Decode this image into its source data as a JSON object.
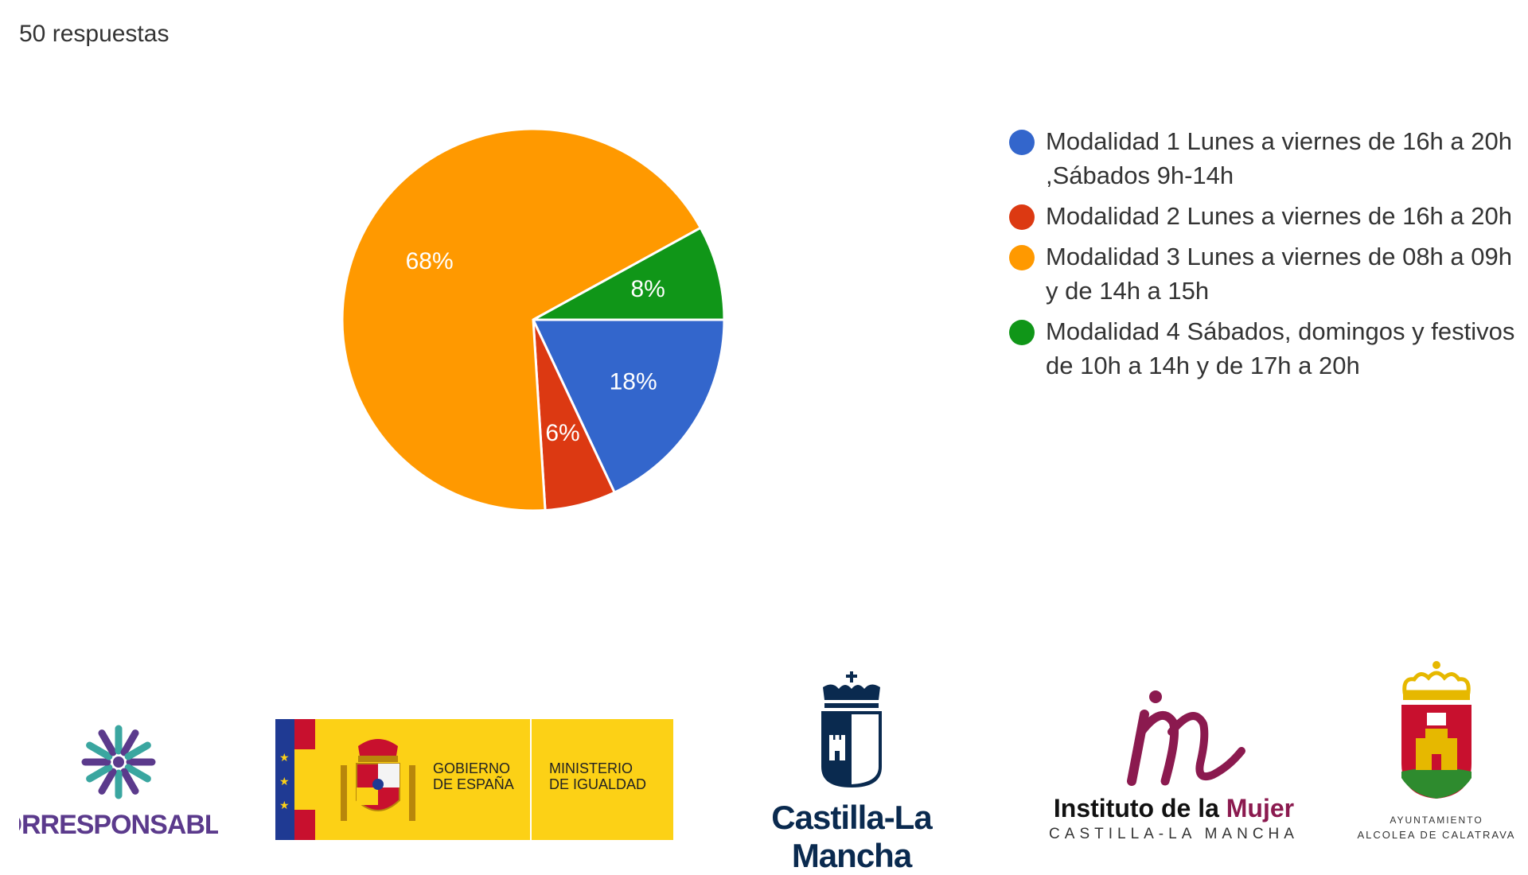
{
  "header": {
    "responses": "50 respuestas"
  },
  "chart_data": {
    "type": "pie",
    "categories": [
      "Modalidad 1 Lunes a viernes de 16h a 20h ,Sábados 9h-14h",
      "Modalidad 2 Lunes a viernes de 16h a 20h",
      "Modalidad 3 Lunes a viernes de 08h a 09h y de 14h a 15h",
      "Modalidad 4 Sábados, domingos y festivos de 10h a 14h y de 17h a 20h"
    ],
    "values": [
      18,
      6,
      68,
      8
    ],
    "data_labels": [
      "18%",
      "6%",
      "68%",
      "8%"
    ],
    "colors": [
      "#3366cc",
      "#dc3912",
      "#ff9900",
      "#109618"
    ],
    "legend_position": "right",
    "slice_order": [
      0,
      1,
      2,
      3
    ],
    "start": "3 o'clock, clockwise"
  },
  "logos": {
    "corresponsables": "CORRESPONSABLES",
    "gobierno_line1": "GOBIERNO",
    "gobierno_line2": "DE ESPAÑA",
    "ministerio_line1": "MINISTERIO",
    "ministerio_line2": "DE IGUALDAD",
    "castilla": "Castilla-La Mancha",
    "instituto_a": "Instituto de la ",
    "instituto_b": "Mujer",
    "instituto_sub": "CASTILLA-LA MANCHA",
    "ayto_line1": "AYUNTAMIENTO",
    "ayto_line2": "ALCOLEA DE CALATRAVA",
    "colors": {
      "purple": "#5b3a8c",
      "teal": "#3aa6a0",
      "yellow": "#fcd116",
      "red": "#c8102e",
      "navy": "#0a2a4f",
      "magenta": "#8b1a4f",
      "green": "#2e8b2e"
    }
  }
}
